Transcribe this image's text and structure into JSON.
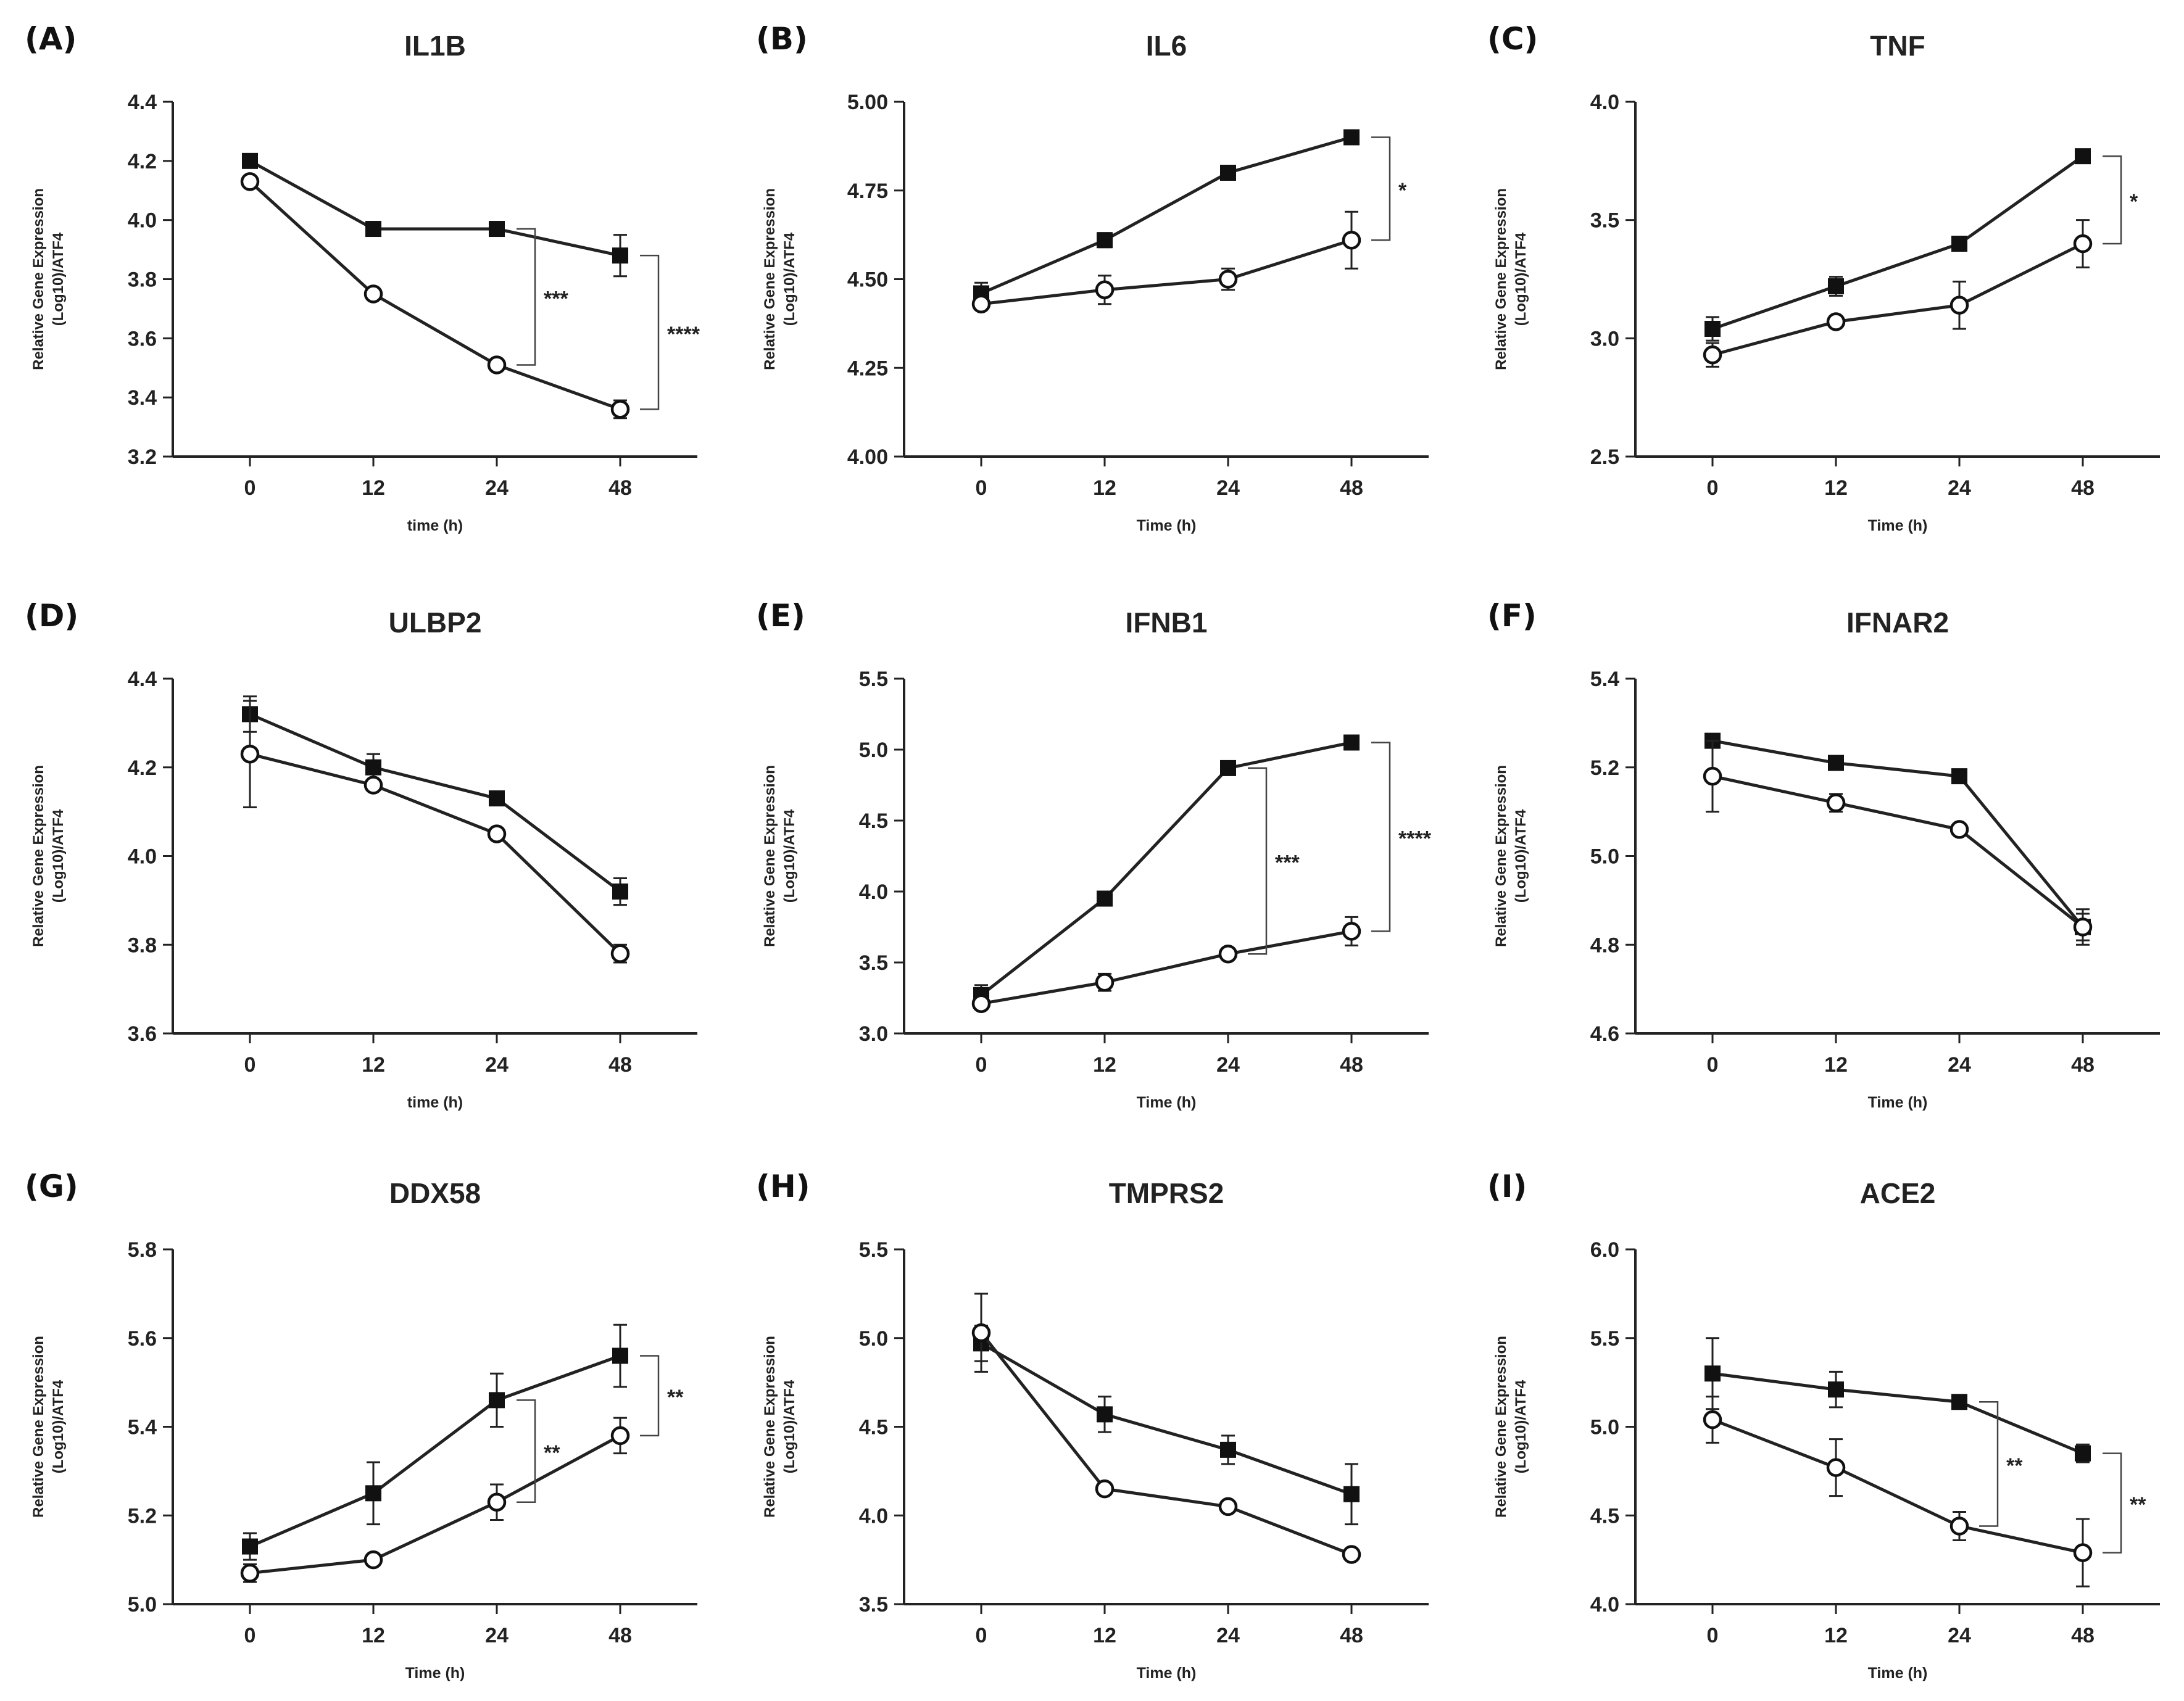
{
  "chart_data": [
    {
      "panel": "(A)",
      "title": "IL1B",
      "type": "line",
      "xlabel": "time (h)",
      "ylabel_lines": [
        "Relative Gene Expression",
        "(Log10)/ATF4"
      ],
      "categories": [
        "0",
        "12",
        "24",
        "48"
      ],
      "ylim": [
        3.2,
        4.4
      ],
      "yticks": [
        "3.2",
        "3.4",
        "3.6",
        "3.8",
        "4.0",
        "4.2",
        "4.4"
      ],
      "series": [
        {
          "name": "filled-square",
          "marker": "square",
          "values": [
            4.2,
            3.97,
            3.97,
            3.88
          ],
          "errors": [
            0.01,
            0.01,
            0.01,
            0.07
          ]
        },
        {
          "name": "open-circle",
          "marker": "circle",
          "values": [
            4.13,
            3.75,
            3.51,
            3.36
          ],
          "errors": [
            0.01,
            0.01,
            0.01,
            0.03
          ]
        }
      ],
      "significance": [
        {
          "index": 2,
          "label": "***"
        },
        {
          "index": 3,
          "label": "****"
        }
      ]
    },
    {
      "panel": "(B)",
      "title": "IL6",
      "type": "line",
      "xlabel": "Time (h)",
      "ylabel_lines": [
        "Relative Gene Expression",
        "(Log10)/ATF4"
      ],
      "categories": [
        "0",
        "12",
        "24",
        "48"
      ],
      "ylim": [
        4.0,
        5.0
      ],
      "yticks": [
        "4.00",
        "4.25",
        "4.50",
        "4.75",
        "5.00"
      ],
      "series": [
        {
          "name": "filled-square",
          "marker": "square",
          "values": [
            4.46,
            4.61,
            4.8,
            4.9
          ],
          "errors": [
            0.03,
            0.02,
            0.02,
            0.02
          ]
        },
        {
          "name": "open-circle",
          "marker": "circle",
          "values": [
            4.43,
            4.47,
            4.5,
            4.61
          ],
          "errors": [
            0.01,
            0.04,
            0.03,
            0.08
          ]
        }
      ],
      "significance": [
        {
          "index": 3,
          "label": "*"
        }
      ]
    },
    {
      "panel": "(C)",
      "title": "TNF",
      "type": "line",
      "xlabel": "Time (h)",
      "ylabel_lines": [
        "Relative Gene Expression",
        "(Log10)/ATF4"
      ],
      "categories": [
        "0",
        "12",
        "24",
        "48"
      ],
      "ylim": [
        2.5,
        4.0
      ],
      "yticks": [
        "2.5",
        "3.0",
        "3.5",
        "4.0"
      ],
      "series": [
        {
          "name": "filled-square",
          "marker": "square",
          "values": [
            3.04,
            3.22,
            3.4,
            3.77
          ],
          "errors": [
            0.05,
            0.04,
            0.01,
            0.01
          ]
        },
        {
          "name": "open-circle",
          "marker": "circle",
          "values": [
            2.93,
            3.07,
            3.14,
            3.4
          ],
          "errors": [
            0.05,
            0.01,
            0.1,
            0.1
          ]
        }
      ],
      "significance": [
        {
          "index": 3,
          "label": "*"
        }
      ]
    },
    {
      "panel": "(D)",
      "title": "ULBP2",
      "type": "line",
      "xlabel": "time (h)",
      "ylabel_lines": [
        "Relative Gene Expression",
        "(Log10)/ATF4"
      ],
      "categories": [
        "0",
        "12",
        "24",
        "48"
      ],
      "ylim": [
        3.6,
        4.4
      ],
      "yticks": [
        "3.6",
        "3.8",
        "4.0",
        "4.2",
        "4.4"
      ],
      "series": [
        {
          "name": "filled-square",
          "marker": "square",
          "values": [
            4.32,
            4.2,
            4.13,
            3.92
          ],
          "errors": [
            0.04,
            0.03,
            0.01,
            0.03
          ]
        },
        {
          "name": "open-circle",
          "marker": "circle",
          "values": [
            4.23,
            4.16,
            4.05,
            3.78
          ],
          "errors": [
            0.12,
            0.01,
            0.01,
            0.02
          ]
        }
      ],
      "significance": []
    },
    {
      "panel": "(E)",
      "title": "IFNB1",
      "type": "line",
      "xlabel": "Time (h)",
      "ylabel_lines": [
        "Relative Gene Expression",
        "(Log10)/ATF4"
      ],
      "categories": [
        "0",
        "12",
        "24",
        "48"
      ],
      "ylim": [
        3.0,
        5.5
      ],
      "yticks": [
        "3.0",
        "3.5",
        "4.0",
        "4.5",
        "5.0",
        "5.5"
      ],
      "series": [
        {
          "name": "filled-square",
          "marker": "square",
          "values": [
            3.27,
            3.95,
            4.87,
            5.05
          ],
          "errors": [
            0.07,
            0.02,
            0.02,
            0.05
          ]
        },
        {
          "name": "open-circle",
          "marker": "circle",
          "values": [
            3.21,
            3.36,
            3.56,
            3.72
          ],
          "errors": [
            0.03,
            0.06,
            0.02,
            0.1
          ]
        }
      ],
      "significance": [
        {
          "index": 2,
          "label": "***"
        },
        {
          "index": 3,
          "label": "****"
        }
      ]
    },
    {
      "panel": "(F)",
      "title": "IFNAR2",
      "type": "line",
      "xlabel": "Time (h)",
      "ylabel_lines": [
        "Relative Gene Expression",
        "(Log10)/ATF4"
      ],
      "categories": [
        "0",
        "12",
        "24",
        "48"
      ],
      "ylim": [
        4.6,
        5.4
      ],
      "yticks": [
        "4.6",
        "4.8",
        "5.0",
        "5.2",
        "5.4"
      ],
      "series": [
        {
          "name": "filled-square",
          "marker": "square",
          "values": [
            5.26,
            5.21,
            5.18,
            4.84
          ],
          "errors": [
            0.01,
            0.01,
            0.01,
            0.03
          ]
        },
        {
          "name": "open-circle",
          "marker": "circle",
          "values": [
            5.18,
            5.12,
            5.06,
            4.84
          ],
          "errors": [
            0.08,
            0.02,
            0.01,
            0.04
          ]
        }
      ],
      "significance": []
    },
    {
      "panel": "(G)",
      "title": "DDX58",
      "type": "line",
      "xlabel": "Time (h)",
      "ylabel_lines": [
        "Relative Gene Expression",
        "(Log10)/ATF4"
      ],
      "categories": [
        "0",
        "12",
        "24",
        "48"
      ],
      "ylim": [
        5.0,
        5.8
      ],
      "yticks": [
        "5.0",
        "5.2",
        "5.4",
        "5.6",
        "5.8"
      ],
      "series": [
        {
          "name": "filled-square",
          "marker": "square",
          "values": [
            5.13,
            5.25,
            5.46,
            5.56
          ],
          "errors": [
            0.03,
            0.07,
            0.06,
            0.07
          ]
        },
        {
          "name": "open-circle",
          "marker": "circle",
          "values": [
            5.07,
            5.1,
            5.23,
            5.38
          ],
          "errors": [
            0.02,
            0.01,
            0.04,
            0.04
          ]
        }
      ],
      "significance": [
        {
          "index": 2,
          "label": "**"
        },
        {
          "index": 3,
          "label": "**"
        }
      ]
    },
    {
      "panel": "(H)",
      "title": "TMPRS2",
      "type": "line",
      "xlabel": "Time (h)",
      "ylabel_lines": [
        "Relative Gene Expression",
        "(Log10)/ATF4"
      ],
      "categories": [
        "0",
        "12",
        "24",
        "48"
      ],
      "ylim": [
        3.5,
        5.5
      ],
      "yticks": [
        "3.5",
        "4.0",
        "4.5",
        "5.0",
        "5.5"
      ],
      "series": [
        {
          "name": "filled-square",
          "marker": "square",
          "values": [
            4.97,
            4.57,
            4.37,
            4.12
          ],
          "errors": [
            0.1,
            0.1,
            0.08,
            0.17
          ]
        },
        {
          "name": "open-circle",
          "marker": "circle",
          "values": [
            5.03,
            4.15,
            4.05,
            3.78
          ],
          "errors": [
            0.22,
            0.01,
            0.01,
            0.01
          ]
        }
      ],
      "significance": []
    },
    {
      "panel": "(I)",
      "title": "ACE2",
      "type": "line",
      "xlabel": "Time (h)",
      "ylabel_lines": [
        "Relative Gene Expression",
        "(Log10)/ATF4"
      ],
      "categories": [
        "0",
        "12",
        "24",
        "48"
      ],
      "ylim": [
        4.0,
        6.0
      ],
      "yticks": [
        "4.0",
        "4.5",
        "5.0",
        "5.5",
        "6.0"
      ],
      "series": [
        {
          "name": "filled-square",
          "marker": "square",
          "values": [
            5.3,
            5.21,
            5.14,
            4.85
          ],
          "errors": [
            0.2,
            0.1,
            0.01,
            0.05
          ]
        },
        {
          "name": "open-circle",
          "marker": "circle",
          "values": [
            5.04,
            4.77,
            4.44,
            4.29
          ],
          "errors": [
            0.13,
            0.16,
            0.08,
            0.19
          ]
        }
      ],
      "significance": [
        {
          "index": 2,
          "label": "**"
        },
        {
          "index": 3,
          "label": "**"
        }
      ]
    }
  ]
}
